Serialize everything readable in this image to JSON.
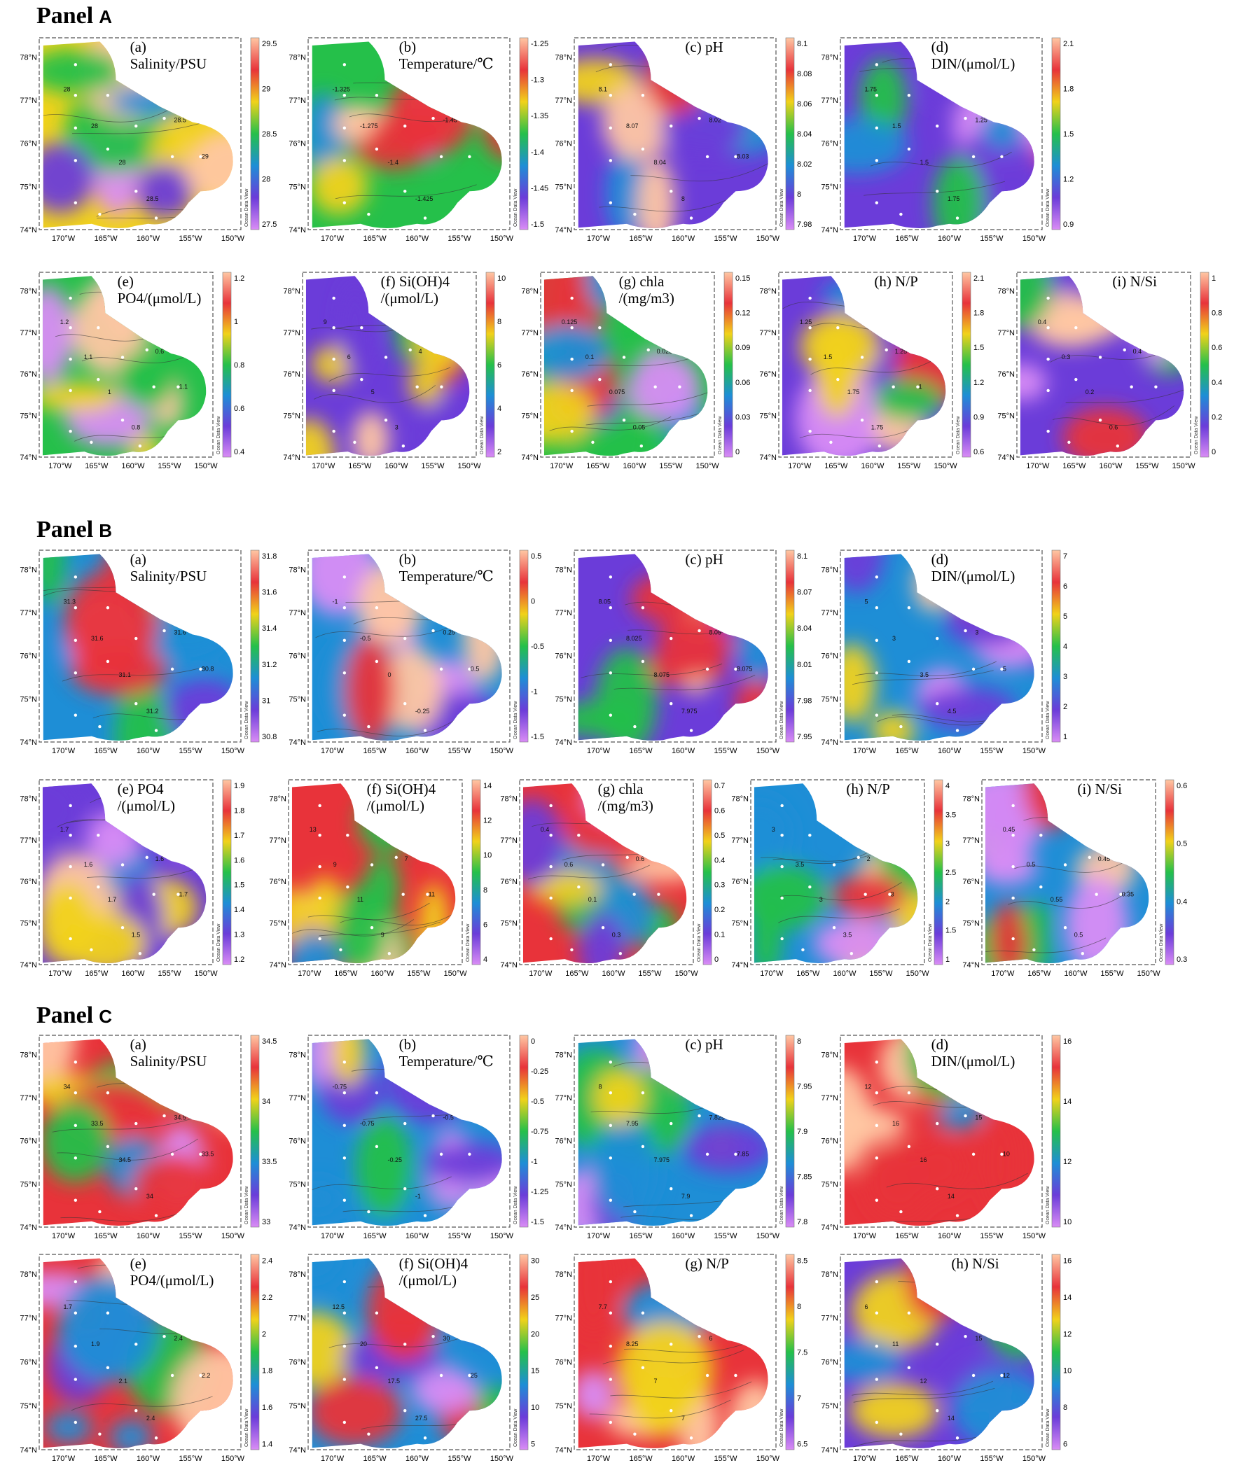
{
  "panels": [
    {
      "label": "Panel",
      "letter": "A",
      "plots": [
        {
          "id": "a",
          "title": [
            "(a)",
            "Salinity/PSU"
          ],
          "ticks": [
            "29.5",
            "29",
            "28.5",
            "28",
            "27.5"
          ],
          "scheme": 0,
          "seed": 3,
          "contour_labels": [
            "28",
            "28",
            "28",
            "28.5",
            "28.5",
            "29"
          ]
        },
        {
          "id": "b",
          "title": [
            "(b)",
            "Temperature/℃"
          ],
          "ticks": [
            "-1.25",
            "-1.3",
            "-1.35",
            "-1.4",
            "-1.45",
            "-1.5"
          ],
          "scheme": 1,
          "seed": 7,
          "contour_labels": [
            "-1.325",
            "-1.275",
            "-1.4",
            "-1.425",
            "-1.45"
          ]
        },
        {
          "id": "c",
          "title": [
            "(c) pH"
          ],
          "ticks": [
            "8.1",
            "8.08",
            "8.06",
            "8.04",
            "8.02",
            "8",
            "7.98"
          ],
          "scheme": 2,
          "seed": 11,
          "contour_labels": [
            "8.1",
            "8.07",
            "8.04",
            "8",
            "8.02",
            "8.03"
          ]
        },
        {
          "id": "d",
          "title": [
            "(d)",
            "DIN/(μmol/L)"
          ],
          "ticks": [
            "2.1",
            "1.8",
            "1.5",
            "1.2",
            "0.9"
          ],
          "scheme": 3,
          "seed": 5,
          "contour_labels": [
            "1.75",
            "1.5",
            "1.5",
            "1.75",
            "1.25"
          ]
        },
        {
          "id": "e",
          "title": [
            "(e)",
            "PO4/(μmol/L)"
          ],
          "ticks": [
            "1.2",
            "1",
            "0.8",
            "0.6",
            "0.4"
          ],
          "scheme": 4,
          "seed": 13,
          "contour_labels": [
            "1.2",
            "1.1",
            "1",
            "0.8",
            "0.6",
            "1.1"
          ]
        },
        {
          "id": "f",
          "title": [
            "(f) Si(OH)4",
            "/(μmol/L)"
          ],
          "ticks": [
            "10",
            "8",
            "6",
            "4",
            "2"
          ],
          "scheme": 5,
          "seed": 17,
          "contour_labels": [
            "9",
            "6",
            "5",
            "3",
            "4"
          ]
        },
        {
          "id": "g",
          "title": [
            "(g) chla",
            "/(mg/m3)"
          ],
          "ticks": [
            "0.15",
            "0.12",
            "0.09",
            "0.06",
            "0.03",
            "0"
          ],
          "scheme": 6,
          "seed": 19,
          "contour_labels": [
            "0.125",
            "0.1",
            "0.075",
            "0.05",
            "0.025"
          ]
        },
        {
          "id": "h",
          "title": [
            "(h) N/P"
          ],
          "ticks": [
            "2.1",
            "1.8",
            "1.5",
            "1.2",
            "0.9",
            "0.6"
          ],
          "scheme": 7,
          "seed": 23,
          "contour_labels": [
            "1.25",
            "1.5",
            "1.75",
            "1.75",
            "1.25",
            "1"
          ]
        },
        {
          "id": "i",
          "title": [
            "(i) N/Si"
          ],
          "ticks": [
            "1",
            "0.8",
            "0.6",
            "0.4",
            "0.2",
            "0"
          ],
          "scheme": 8,
          "seed": 29,
          "contour_labels": [
            "0.4",
            "0.3",
            "0.2",
            "0.6",
            "0.4"
          ]
        }
      ]
    },
    {
      "label": "Panel",
      "letter": "B",
      "plots": [
        {
          "id": "a",
          "title": [
            "(a)",
            "Salinity/PSU"
          ],
          "ticks": [
            "31.8",
            "31.6",
            "31.4",
            "31.2",
            "31",
            "30.8"
          ],
          "scheme": 0,
          "seed": 31,
          "contour_labels": [
            "31.3",
            "31.6",
            "31.1",
            "31.2",
            "31.6",
            "30.8"
          ]
        },
        {
          "id": "b",
          "title": [
            "(b)",
            "Temperature/℃"
          ],
          "ticks": [
            "0.5",
            "0",
            "-0.5",
            "-1",
            "-1.5"
          ],
          "scheme": 1,
          "seed": 37,
          "contour_labels": [
            "-1",
            "-0.5",
            "0",
            "-0.25",
            "0.25",
            "0.5"
          ]
        },
        {
          "id": "c",
          "title": [
            "(c) pH"
          ],
          "ticks": [
            "8.1",
            "8.07",
            "8.04",
            "8.01",
            "7.98",
            "7.95"
          ],
          "scheme": 2,
          "seed": 41,
          "contour_labels": [
            "8.05",
            "8.025",
            "8.075",
            "7.975",
            "8.05",
            "8.075"
          ]
        },
        {
          "id": "d",
          "title": [
            "(d)",
            "DIN/(μmol/L)"
          ],
          "ticks": [
            "7",
            "6",
            "5",
            "4",
            "3",
            "2",
            "1"
          ],
          "scheme": 3,
          "seed": 43,
          "contour_labels": [
            "5",
            "3",
            "3.5",
            "4.5",
            "3",
            "5"
          ]
        },
        {
          "id": "e",
          "title": [
            "(e) PO4",
            "/(μmol/L)"
          ],
          "ticks": [
            "1.9",
            "1.8",
            "1.7",
            "1.6",
            "1.5",
            "1.4",
            "1.3",
            "1.2"
          ],
          "scheme": 4,
          "seed": 47,
          "contour_labels": [
            "1.7",
            "1.6",
            "1.7",
            "1.5",
            "1.6",
            "1.7"
          ]
        },
        {
          "id": "f",
          "title": [
            "(f) Si(OH)4",
            "/(μmol/L)"
          ],
          "ticks": [
            "14",
            "12",
            "10",
            "8",
            "6",
            "4"
          ],
          "scheme": 5,
          "seed": 53,
          "contour_labels": [
            "13",
            "9",
            "11",
            "9",
            "7",
            "11"
          ]
        },
        {
          "id": "g",
          "title": [
            "(g) chla",
            "/(mg/m3)"
          ],
          "ticks": [
            "0.7",
            "0.6",
            "0.5",
            "0.4",
            "0.3",
            "0.2",
            "0.1",
            "0"
          ],
          "scheme": 6,
          "seed": 59,
          "contour_labels": [
            "0.4",
            "0.6",
            "0.1",
            "0.3",
            "0.6"
          ]
        },
        {
          "id": "h",
          "title": [
            "(h) N/P"
          ],
          "ticks": [
            "4",
            "3.5",
            "3",
            "2.5",
            "2",
            "1.5",
            "1"
          ],
          "scheme": 7,
          "seed": 61,
          "contour_labels": [
            "3",
            "3.5",
            "3",
            "3.5",
            "2",
            "3"
          ]
        },
        {
          "id": "i",
          "title": [
            "(i) N/Si"
          ],
          "ticks": [
            "0.6",
            "0.5",
            "0.4",
            "0.3"
          ],
          "scheme": 8,
          "seed": 67,
          "contour_labels": [
            "0.45",
            "0.5",
            "0.55",
            "0.5",
            "0.45",
            "0.35"
          ]
        }
      ]
    },
    {
      "label": "Panel",
      "letter": "C",
      "plots": [
        {
          "id": "a",
          "title": [
            "(a)",
            "Salinity/PSU"
          ],
          "ticks": [
            "34.5",
            "34",
            "33.5",
            "33"
          ],
          "scheme": 0,
          "seed": 71,
          "contour_labels": [
            "34",
            "33.5",
            "34.5",
            "34",
            "34.5",
            "33.5"
          ]
        },
        {
          "id": "b",
          "title": [
            "(b)",
            "Temperature/℃"
          ],
          "ticks": [
            "0",
            "-0.25",
            "-0.5",
            "-0.75",
            "-1",
            "-1.25",
            "-1.5"
          ],
          "scheme": 1,
          "seed": 73,
          "contour_labels": [
            "-0.75",
            "-0.75",
            "-0.25",
            "-1",
            "-0.5"
          ]
        },
        {
          "id": "c",
          "title": [
            "(c) pH"
          ],
          "ticks": [
            "8",
            "7.95",
            "7.9",
            "7.85",
            "7.8"
          ],
          "scheme": 2,
          "seed": 79,
          "contour_labels": [
            "8",
            "7.95",
            "7.975",
            "7.9",
            "7.825",
            "7.85"
          ]
        },
        {
          "id": "d",
          "title": [
            "(d)",
            "DIN/(μmol/L)"
          ],
          "ticks": [
            "16",
            "14",
            "12",
            "10"
          ],
          "scheme": 3,
          "seed": 83,
          "contour_labels": [
            "12",
            "16",
            "16",
            "14",
            "15",
            "10"
          ]
        },
        {
          "id": "e",
          "title": [
            "(e)",
            "PO4/(μmol/L)"
          ],
          "ticks": [
            "2.4",
            "2.2",
            "2",
            "1.8",
            "1.6",
            "1.4"
          ],
          "scheme": 4,
          "seed": 89,
          "contour_labels": [
            "1.7",
            "1.9",
            "2.1",
            "2.4",
            "2.4",
            "2.2"
          ]
        },
        {
          "id": "f",
          "title": [
            "(f) Si(OH)4",
            "/(μmol/L)"
          ],
          "ticks": [
            "30",
            "25",
            "20",
            "15",
            "10",
            "5"
          ],
          "scheme": 5,
          "seed": 97,
          "contour_labels": [
            "12.5",
            "20",
            "17.5",
            "27.5",
            "30",
            "25"
          ]
        },
        {
          "id": "g",
          "title": [
            "(g) N/P"
          ],
          "ticks": [
            "8.5",
            "8",
            "7.5",
            "7",
            "6.5"
          ],
          "scheme": 6,
          "seed": 101,
          "contour_labels": [
            "7.7",
            "8.25",
            "7",
            "7",
            "6"
          ]
        },
        {
          "id": "h",
          "title": [
            "(h) N/Si"
          ],
          "ticks": [
            "16",
            "14",
            "12",
            "10",
            "8",
            "6"
          ],
          "scheme": 7,
          "seed": 103,
          "contour_labels": [
            "6",
            "11",
            "12",
            "14",
            "15",
            "12"
          ]
        }
      ]
    }
  ],
  "axes": {
    "x_ticks": [
      "170°W",
      "165°W",
      "160°W",
      "155°W",
      "150°W"
    ],
    "y_ticks": [
      "78°N",
      "77°N",
      "76°N",
      "75°N",
      "74°N"
    ],
    "watermark": "Ocean Data View"
  },
  "chart_data": [
    {
      "type": "heatmap",
      "panel": "A",
      "maps": [
        "(a) Salinity/PSU",
        "(b) Temperature/℃",
        "(c) pH",
        "(d) DIN/(μmol/L)",
        "(e) PO4/(μmol/L)",
        "(f) Si(OH)4 /(μmol/L)",
        "(g) chla /(mg/m3)",
        "(h) N/P",
        "(i) N/Si"
      ],
      "xlim": [
        "170°W",
        "150°W"
      ],
      "ylim": [
        "74°N",
        "78°N"
      ]
    },
    {
      "type": "heatmap",
      "panel": "B",
      "maps": [
        "(a) Salinity/PSU",
        "(b) Temperature/℃",
        "(c) pH",
        "(d) DIN/(μmol/L)",
        "(e) PO4 /(μmol/L)",
        "(f) Si(OH)4 /(μmol/L)",
        "(g) chla /(mg/m3)",
        "(h) N/P",
        "(i) N/Si"
      ],
      "xlim": [
        "170°W",
        "150°W"
      ],
      "ylim": [
        "74°N",
        "78°N"
      ]
    },
    {
      "type": "heatmap",
      "panel": "C",
      "maps": [
        "(a) Salinity/PSU",
        "(b) Temperature/℃",
        "(c) pH",
        "(d) DIN/(μmol/L)",
        "(e) PO4/(μmol/L)",
        "(f) Si(OH)4 /(μmol/L)",
        "(g) N/P",
        "(h) N/Si"
      ],
      "xlim": [
        "170°W",
        "150°W"
      ],
      "ylim": [
        "74°N",
        "78°N"
      ]
    }
  ]
}
